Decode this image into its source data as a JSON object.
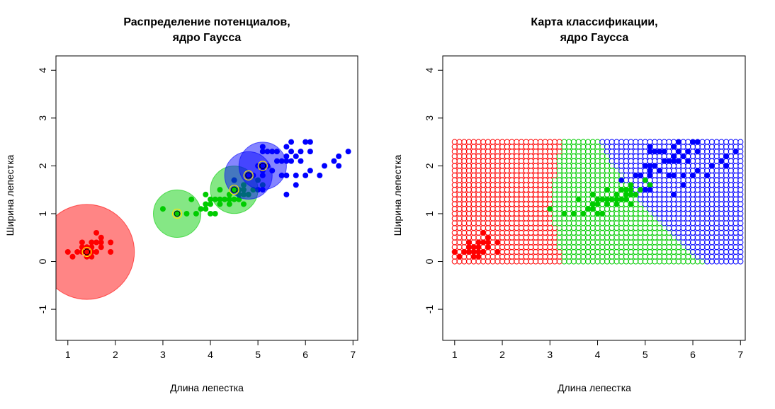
{
  "chart_data": [
    {
      "type": "scatter",
      "title": [
        "Распределение потенциалов,",
        "ядро Гаусса"
      ],
      "xlabel": "Длина лепестка",
      "ylabel": "Ширина лепестка",
      "xlim": [
        0.75,
        7.1
      ],
      "ylim": [
        -1.65,
        4.3
      ],
      "xticks": [
        1,
        2,
        3,
        4,
        5,
        6,
        7
      ],
      "yticks": [
        -1,
        0,
        1,
        2,
        3,
        4
      ],
      "colors": {
        "setosa": "#ff0000",
        "versicolor": "#00cc00",
        "virginica": "#0000ff"
      },
      "potentials": [
        {
          "class": "setosa",
          "x": 1.4,
          "y": 0.2,
          "r": 1.0,
          "color": "#ff0000"
        },
        {
          "class": "versicolor",
          "x": 3.3,
          "y": 1.0,
          "r": 0.5,
          "color": "#00cc00"
        },
        {
          "class": "versicolor",
          "x": 4.5,
          "y": 1.5,
          "r": 0.5,
          "color": "#00cc00"
        },
        {
          "class": "virginica",
          "x": 4.8,
          "y": 1.8,
          "r": 0.5,
          "color": "#0000ff"
        },
        {
          "class": "virginica",
          "x": 5.1,
          "y": 2.0,
          "r": 0.5,
          "color": "#0000ff"
        }
      ],
      "series": [
        {
          "class": "setosa",
          "points": [
            [
              1.0,
              0.2
            ],
            [
              1.1,
              0.1
            ],
            [
              1.2,
              0.2
            ],
            [
              1.3,
              0.2
            ],
            [
              1.3,
              0.3
            ],
            [
              1.3,
              0.4
            ],
            [
              1.4,
              0.1
            ],
            [
              1.4,
              0.2
            ],
            [
              1.4,
              0.3
            ],
            [
              1.5,
              0.1
            ],
            [
              1.5,
              0.2
            ],
            [
              1.5,
              0.3
            ],
            [
              1.5,
              0.4
            ],
            [
              1.6,
              0.2
            ],
            [
              1.6,
              0.4
            ],
            [
              1.6,
              0.6
            ],
            [
              1.7,
              0.3
            ],
            [
              1.7,
              0.4
            ],
            [
              1.7,
              0.5
            ],
            [
              1.9,
              0.2
            ],
            [
              1.9,
              0.4
            ]
          ]
        },
        {
          "class": "versicolor",
          "points": [
            [
              3.0,
              1.1
            ],
            [
              3.3,
              1.0
            ],
            [
              3.5,
              1.0
            ],
            [
              3.6,
              1.3
            ],
            [
              3.7,
              1.0
            ],
            [
              3.8,
              1.1
            ],
            [
              3.9,
              1.1
            ],
            [
              3.9,
              1.2
            ],
            [
              3.9,
              1.4
            ],
            [
              4.0,
              1.0
            ],
            [
              4.0,
              1.2
            ],
            [
              4.0,
              1.3
            ],
            [
              4.1,
              1.0
            ],
            [
              4.1,
              1.3
            ],
            [
              4.2,
              1.2
            ],
            [
              4.2,
              1.3
            ],
            [
              4.2,
              1.5
            ],
            [
              4.3,
              1.3
            ],
            [
              4.4,
              1.2
            ],
            [
              4.4,
              1.3
            ],
            [
              4.4,
              1.4
            ],
            [
              4.5,
              1.3
            ],
            [
              4.5,
              1.5
            ],
            [
              4.5,
              1.7
            ],
            [
              4.6,
              1.3
            ],
            [
              4.6,
              1.4
            ],
            [
              4.6,
              1.5
            ],
            [
              4.7,
              1.2
            ],
            [
              4.7,
              1.4
            ],
            [
              4.7,
              1.5
            ],
            [
              4.7,
              1.6
            ],
            [
              4.8,
              1.4
            ],
            [
              4.8,
              1.8
            ],
            [
              4.9,
              1.5
            ],
            [
              5.0,
              1.7
            ],
            [
              5.1,
              1.6
            ]
          ]
        },
        {
          "class": "virginica",
          "points": [
            [
              4.5,
              1.7
            ],
            [
              4.8,
              1.8
            ],
            [
              4.9,
              1.8
            ],
            [
              5.0,
              1.5
            ],
            [
              5.0,
              2.0
            ],
            [
              5.1,
              1.5
            ],
            [
              5.1,
              1.8
            ],
            [
              5.1,
              1.9
            ],
            [
              5.1,
              2.0
            ],
            [
              5.1,
              2.3
            ],
            [
              5.1,
              2.4
            ],
            [
              5.2,
              2.0
            ],
            [
              5.2,
              2.3
            ],
            [
              5.3,
              1.9
            ],
            [
              5.3,
              2.3
            ],
            [
              5.4,
              2.1
            ],
            [
              5.4,
              2.3
            ],
            [
              5.5,
              1.8
            ],
            [
              5.5,
              2.1
            ],
            [
              5.6,
              1.4
            ],
            [
              5.6,
              1.8
            ],
            [
              5.6,
              2.1
            ],
            [
              5.6,
              2.2
            ],
            [
              5.6,
              2.4
            ],
            [
              5.7,
              2.1
            ],
            [
              5.7,
              2.3
            ],
            [
              5.7,
              2.5
            ],
            [
              5.8,
              1.6
            ],
            [
              5.8,
              1.8
            ],
            [
              5.8,
              2.2
            ],
            [
              5.9,
              2.1
            ],
            [
              5.9,
              2.3
            ],
            [
              6.0,
              1.8
            ],
            [
              6.0,
              2.5
            ],
            [
              6.1,
              1.9
            ],
            [
              6.1,
              2.3
            ],
            [
              6.1,
              2.5
            ],
            [
              6.3,
              1.8
            ],
            [
              6.4,
              2.0
            ],
            [
              6.6,
              2.1
            ],
            [
              6.7,
              2.0
            ],
            [
              6.7,
              2.2
            ],
            [
              6.9,
              2.3
            ]
          ]
        }
      ]
    },
    {
      "type": "scatter",
      "title": [
        "Карта классификации,",
        "ядро Гаусса"
      ],
      "xlabel": "Длина лепестка",
      "ylabel": "Ширина лепестка",
      "xlim": [
        0.75,
        7.1
      ],
      "ylim": [
        -1.65,
        4.3
      ],
      "xticks": [
        1,
        2,
        3,
        4,
        5,
        6,
        7
      ],
      "yticks": [
        -1,
        0,
        1,
        2,
        3,
        4
      ],
      "grid": {
        "x": [
          1.0,
          7.0
        ],
        "y": [
          0.0,
          2.5
        ],
        "step": 0.1
      },
      "regions": {
        "setosa_max_x": 3.25,
        "versicolor_boundary": [
          [
            3.05,
            0.0
          ],
          [
            6.2,
            0.0
          ],
          [
            4.95,
            1.2
          ],
          [
            4.3,
            2.1
          ],
          [
            4.05,
            2.5
          ]
        ]
      },
      "colors": {
        "setosa": "#ff0000",
        "versicolor": "#00cc00",
        "virginica": "#0000ff"
      }
    }
  ]
}
